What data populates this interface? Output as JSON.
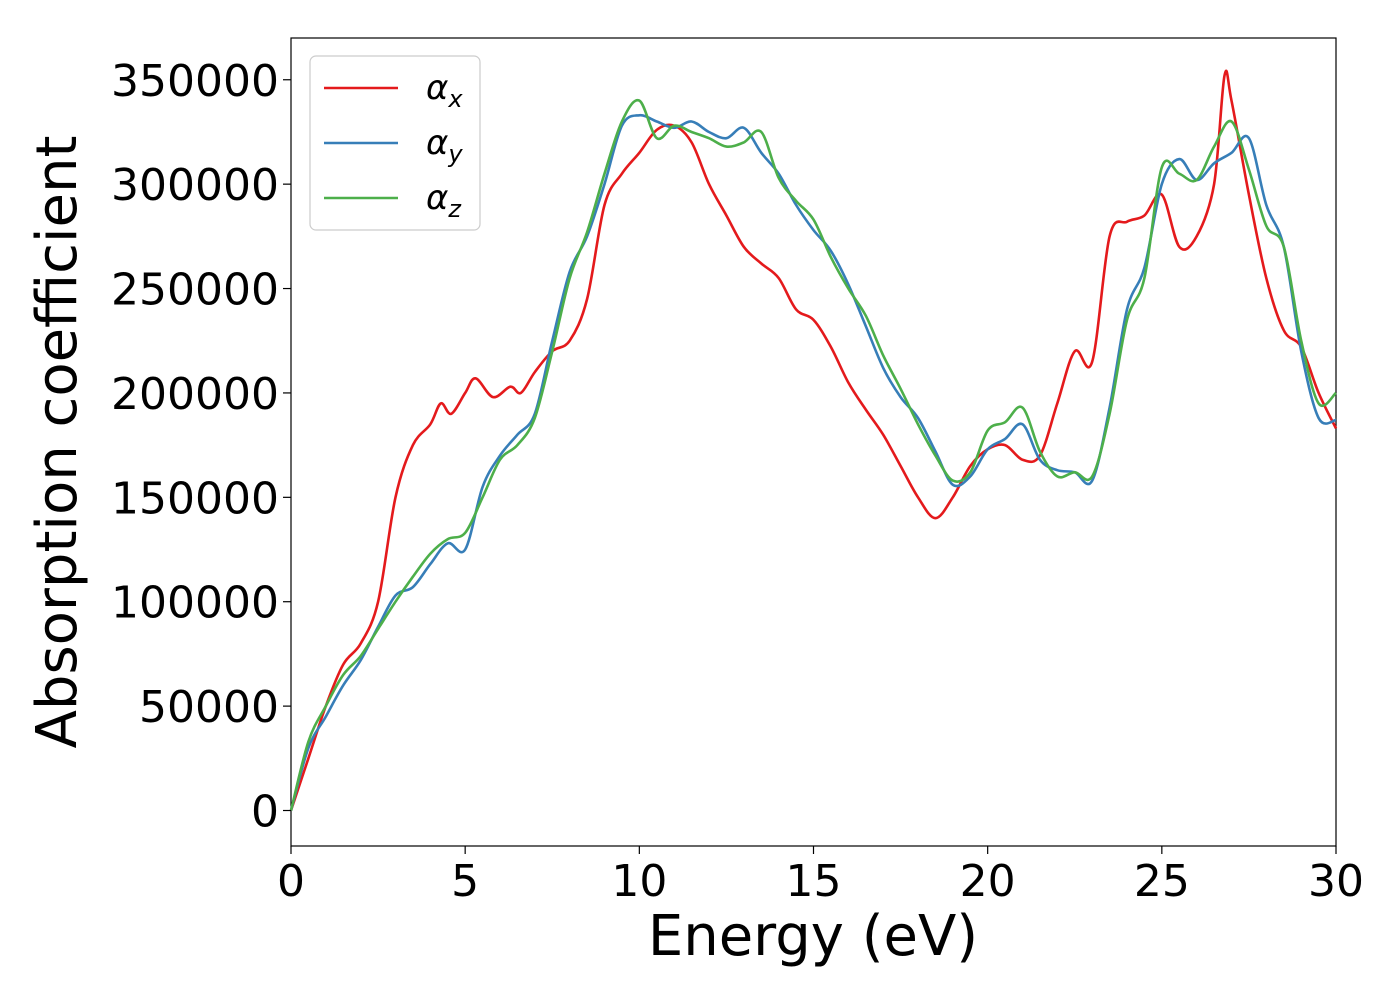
{
  "chart_data": {
    "type": "line",
    "title": "",
    "xlabel": "Energy (eV)",
    "ylabel": "Absorption coefficient",
    "xlim": [
      0,
      30
    ],
    "ylim": [
      -17000,
      370000
    ],
    "xticks": [
      0,
      5,
      10,
      15,
      20,
      25,
      30
    ],
    "xtick_labels": [
      "0",
      "5",
      "10",
      "15",
      "20",
      "25",
      "30"
    ],
    "yticks": [
      0,
      50000,
      100000,
      150000,
      200000,
      250000,
      300000,
      350000
    ],
    "ytick_labels": [
      "0",
      "50000",
      "100000",
      "150000",
      "200000",
      "250000",
      "300000",
      "350000"
    ],
    "grid": false,
    "legend_position": "top-left",
    "series": [
      {
        "name": "α_x",
        "label_main": "α",
        "label_sub": "x",
        "color": "#e41a1c",
        "x": [
          0,
          0.5,
          1,
          1.5,
          2,
          2.5,
          3,
          3.5,
          4,
          4.3,
          4.6,
          5,
          5.3,
          5.8,
          6.3,
          6.6,
          7,
          7.5,
          8,
          8.5,
          9,
          9.5,
          10,
          10.5,
          11,
          11.5,
          12,
          12.5,
          13,
          13.5,
          14,
          14.5,
          15,
          15.5,
          16,
          16.5,
          17,
          17.5,
          18,
          18.5,
          19,
          19.5,
          20,
          20.5,
          21,
          21.5,
          22,
          22.5,
          23,
          23.5,
          24,
          24.5,
          25,
          25.5,
          26,
          26.5,
          26.8,
          27,
          27.5,
          28,
          28.5,
          29,
          29.5,
          30
        ],
        "y": [
          0,
          25000,
          50000,
          70000,
          80000,
          100000,
          150000,
          175000,
          185000,
          195000,
          190000,
          200000,
          207000,
          198000,
          203000,
          200000,
          210000,
          220000,
          225000,
          245000,
          290000,
          305000,
          315000,
          326000,
          328000,
          320000,
          300000,
          285000,
          270000,
          262000,
          255000,
          240000,
          235000,
          222000,
          205000,
          192000,
          180000,
          165000,
          150000,
          140000,
          150000,
          165000,
          173000,
          175000,
          168000,
          170000,
          195000,
          220000,
          215000,
          275000,
          282000,
          285000,
          295000,
          270000,
          275000,
          300000,
          352000,
          340000,
          295000,
          255000,
          230000,
          222000,
          200000,
          183000
        ]
      },
      {
        "name": "α_y",
        "label_main": "α",
        "label_sub": "y",
        "color": "#377eb8",
        "x": [
          0,
          0.5,
          1,
          1.5,
          2,
          2.5,
          3,
          3.5,
          4,
          4.5,
          5,
          5.5,
          6,
          6.5,
          7,
          7.5,
          8,
          8.5,
          9,
          9.5,
          10,
          10.5,
          11,
          11.5,
          12,
          12.5,
          13,
          13.5,
          14,
          14.5,
          15,
          15.5,
          16,
          16.5,
          17,
          17.5,
          18,
          18.5,
          19,
          19.5,
          20,
          20.5,
          21,
          21.5,
          22,
          22.5,
          23,
          23.5,
          24,
          24.5,
          25,
          25.5,
          26,
          26.5,
          27,
          27.5,
          28,
          28.5,
          29,
          29.5,
          30
        ],
        "y": [
          0,
          30000,
          45000,
          60000,
          72000,
          88000,
          103000,
          107000,
          118000,
          128000,
          125000,
          155000,
          170000,
          180000,
          190000,
          225000,
          258000,
          275000,
          300000,
          328000,
          333000,
          330000,
          327000,
          330000,
          325000,
          322000,
          327000,
          315000,
          305000,
          290000,
          278000,
          268000,
          252000,
          232000,
          212000,
          198000,
          188000,
          172000,
          156000,
          160000,
          173000,
          178000,
          185000,
          168000,
          163000,
          162000,
          158000,
          193000,
          240000,
          260000,
          300000,
          312000,
          302000,
          310000,
          315000,
          322000,
          290000,
          270000,
          220000,
          188000,
          187000
        ]
      },
      {
        "name": "α_z",
        "label_main": "α",
        "label_sub": "z",
        "color": "#4daf4a",
        "x": [
          0,
          0.5,
          1,
          1.5,
          2,
          2.5,
          3,
          3.5,
          4,
          4.5,
          5,
          5.5,
          6,
          6.5,
          7,
          7.5,
          8,
          8.5,
          9,
          9.5,
          10,
          10.5,
          11,
          11.5,
          12,
          12.5,
          13,
          13.5,
          14,
          14.5,
          15,
          15.5,
          16,
          16.5,
          17,
          17.5,
          18,
          18.5,
          19,
          19.5,
          20,
          20.5,
          21,
          21.5,
          22,
          22.5,
          23,
          23.5,
          24,
          24.5,
          25,
          25.5,
          26,
          26.5,
          27,
          27.5,
          28,
          28.5,
          29,
          29.5,
          30
        ],
        "y": [
          0,
          33000,
          50000,
          65000,
          74000,
          87000,
          100000,
          112000,
          123000,
          130000,
          133000,
          150000,
          168000,
          175000,
          188000,
          220000,
          255000,
          277000,
          305000,
          330000,
          340000,
          322000,
          328000,
          325000,
          322000,
          318000,
          320000,
          325000,
          303000,
          292000,
          283000,
          265000,
          250000,
          237000,
          218000,
          202000,
          185000,
          170000,
          158000,
          162000,
          182000,
          186000,
          193000,
          172000,
          160000,
          162000,
          160000,
          190000,
          235000,
          255000,
          308000,
          305000,
          302000,
          318000,
          330000,
          307000,
          280000,
          270000,
          225000,
          195000,
          200000
        ]
      }
    ]
  }
}
